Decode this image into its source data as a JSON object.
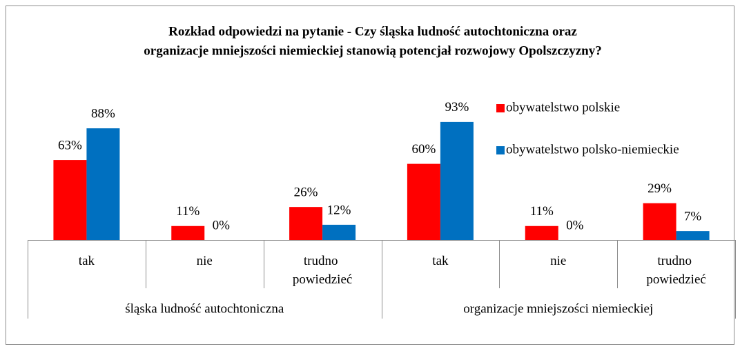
{
  "chart_data": {
    "type": "bar",
    "title": "Rozkład odpowiedzi na pytanie - Czy śląska ludność autochtoniczna oraz",
    "title_line2": "organizacje mniejszości niemieckiej stanowią potencjał rozwojowy Opolszczyzny?",
    "categories": [
      "tak",
      "nie",
      "trudno powiedzieć",
      "tak",
      "nie",
      "trudno powiedzieć"
    ],
    "category_groups": [
      "śląska ludność autochtoniczna",
      "organizacje mniejszości niemieckiej"
    ],
    "series": [
      {
        "name": "obywatelstwo polskie",
        "color": "#ff0000",
        "values": [
          63,
          11,
          26,
          60,
          11,
          29
        ],
        "value_labels": [
          "63%",
          "11%",
          "26%",
          "60%",
          "11%",
          "29%"
        ]
      },
      {
        "name": "obywatelstwo polsko-niemieckie",
        "color": "#0070c0",
        "values": [
          88,
          0,
          12,
          93,
          0,
          7
        ],
        "value_labels": [
          "88%",
          "0%",
          "12%",
          "93%",
          "0%",
          "7%"
        ]
      }
    ],
    "legend": "right"
  }
}
